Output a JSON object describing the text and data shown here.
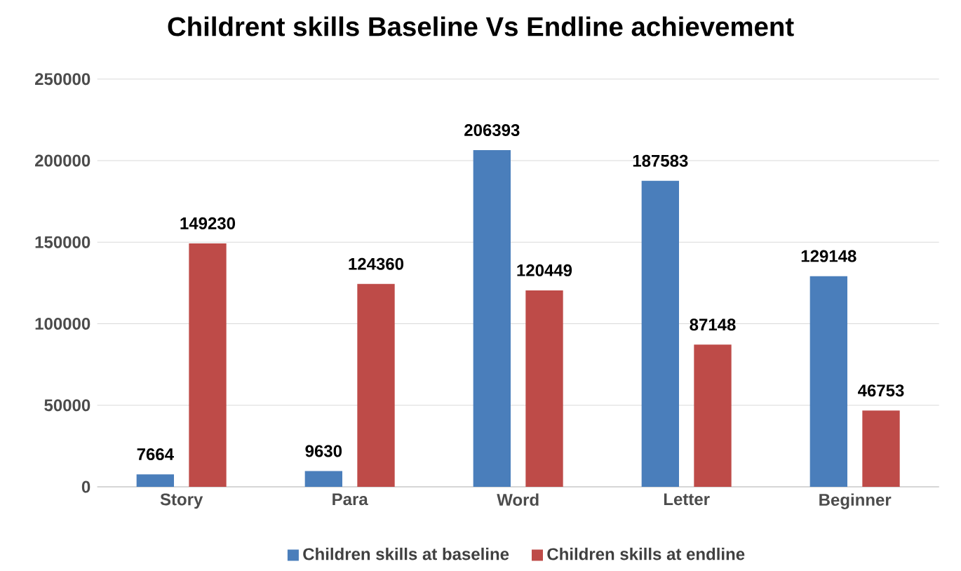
{
  "chart_data": {
    "type": "bar",
    "title": "Childrent skills Baseline Vs Endline achievement",
    "categories": [
      "Story",
      "Para",
      "Word",
      "Letter",
      "Beginner"
    ],
    "series": [
      {
        "name": "Children skills at baseline",
        "color": "#4a7ebb",
        "values": [
          7664,
          9630,
          206393,
          187583,
          129148
        ]
      },
      {
        "name": "Children skills at endline",
        "color": "#be4b48",
        "values": [
          149230,
          124360,
          120449,
          87148,
          46753
        ]
      }
    ],
    "ylim": [
      0,
      250000
    ],
    "yticks": [
      0,
      50000,
      100000,
      150000,
      200000,
      250000
    ],
    "grid": "y",
    "legend": "bottom",
    "data_labels": true
  }
}
